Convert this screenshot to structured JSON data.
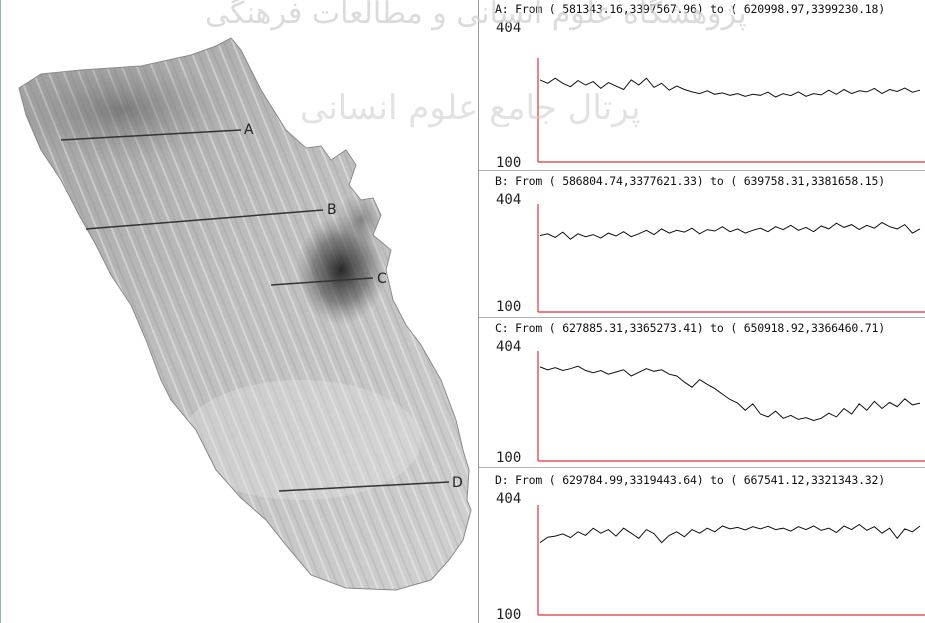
{
  "watermark": {
    "line1": "پژوهشگاه علوم انسانی و مطالعات فرهنگی",
    "line2": "پرتال جامع علوم انسانی"
  },
  "map": {
    "sections": [
      {
        "id": "A",
        "label": "A"
      },
      {
        "id": "B",
        "label": "B"
      },
      {
        "id": "C",
        "label": "C"
      },
      {
        "id": "D",
        "label": "D"
      }
    ]
  },
  "profiles": [
    {
      "id": "A",
      "title": "A: From ( 581343.16,3397567.96) to ( 620998.97,3399230.18)",
      "ymax_label": "404",
      "ymin_label": "100"
    },
    {
      "id": "B",
      "title": "B: From ( 586804.74,3377621.33) to ( 639758.31,3381658.15)",
      "ymax_label": "404",
      "ymin_label": "100"
    },
    {
      "id": "C",
      "title": "C: From ( 627885.31,3365273.41) to ( 650918.92,3366460.71)",
      "ymax_label": "404",
      "ymin_label": "100"
    },
    {
      "id": "D",
      "title": "D: From ( 629784.99,3319443.64) to ( 667541.12,3321343.32)",
      "ymax_label": "404",
      "ymin_label": "100"
    }
  ],
  "chart_data": [
    {
      "type": "line",
      "title": "A: From ( 581343.16,3397567.96) to ( 620998.97,3399230.18)",
      "ylim": [
        100,
        404
      ],
      "series": [
        {
          "values": [
            340,
            330,
            345,
            330,
            320,
            338,
            325,
            335,
            315,
            332,
            322,
            312,
            340,
            325,
            345,
            318,
            330,
            310,
            322,
            312,
            305,
            300,
            308,
            298,
            302,
            295,
            300,
            292,
            298,
            295,
            304,
            290,
            300,
            294,
            305,
            292,
            300,
            296,
            310,
            298,
            312,
            300,
            308,
            305,
            315,
            300,
            312,
            306,
            316,
            304,
            310
          ]
        }
      ]
    },
    {
      "type": "line",
      "title": "B: From ( 586804.74,3377621.33) to ( 639758.31,3381658.15)",
      "ylim": [
        100,
        404
      ],
      "series": [
        {
          "values": [
            315,
            320,
            310,
            325,
            305,
            320,
            312,
            318,
            308,
            322,
            314,
            326,
            312,
            320,
            330,
            318,
            334,
            322,
            330,
            325,
            336,
            320,
            332,
            328,
            340,
            326,
            334,
            322,
            330,
            336,
            326,
            340,
            332,
            344,
            330,
            338,
            326,
            342,
            334,
            350,
            338,
            346,
            332,
            344,
            336,
            352,
            340,
            334,
            346,
            322,
            334
          ]
        }
      ]
    },
    {
      "type": "line",
      "title": "C: From ( 627885.31,3365273.41) to ( 650918.92,3366460.71)",
      "ylim": [
        100,
        404
      ],
      "series": [
        {
          "values": [
            360,
            352,
            358,
            350,
            355,
            362,
            350,
            344,
            350,
            340,
            346,
            352,
            335,
            345,
            355,
            348,
            352,
            340,
            335,
            318,
            304,
            325,
            312,
            300,
            285,
            270,
            260,
            240,
            258,
            230,
            222,
            238,
            218,
            226,
            215,
            220,
            212,
            218,
            232,
            222,
            245,
            230,
            258,
            240,
            265,
            245,
            262,
            250,
            272,
            255,
            260
          ]
        }
      ]
    },
    {
      "type": "line",
      "title": "D: From ( 629784.99,3319443.64) to ( 667541.12,3321343.32)",
      "ylim": [
        100,
        404
      ],
      "series": [
        {
          "values": [
            300,
            315,
            318,
            324,
            314,
            330,
            320,
            340,
            326,
            336,
            318,
            340,
            326,
            312,
            336,
            325,
            300,
            320,
            330,
            316,
            336,
            326,
            340,
            330,
            346,
            338,
            342,
            335,
            344,
            338,
            345,
            336,
            340,
            332,
            344,
            336,
            346,
            334,
            340,
            328,
            346,
            336,
            350,
            334,
            344,
            326,
            340,
            312,
            338,
            330,
            346
          ]
        }
      ]
    }
  ]
}
